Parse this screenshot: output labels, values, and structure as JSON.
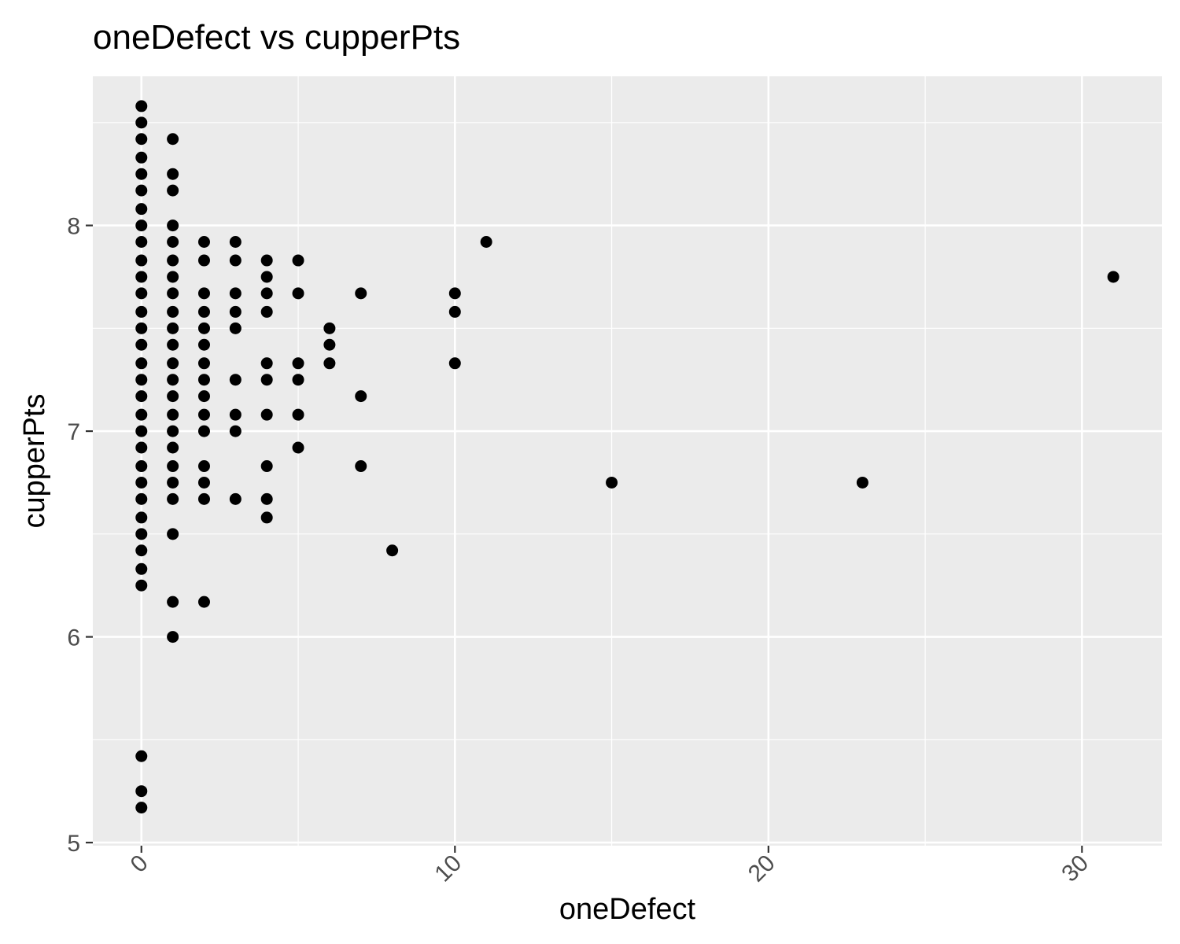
{
  "chart_data": {
    "type": "scatter",
    "title": "oneDefect vs cupperPts",
    "xlabel": "oneDefect",
    "ylabel": "cupperPts",
    "xlim": [
      -1.55,
      32.55
    ],
    "ylim": [
      4.985,
      8.725
    ],
    "x_ticks": [
      0,
      10,
      20,
      30
    ],
    "y_ticks": [
      5,
      6,
      7,
      8
    ],
    "x_tick_labels": [
      "0",
      "10",
      "20",
      "30"
    ],
    "y_tick_labels": [
      "5",
      "6",
      "7",
      "8"
    ],
    "x_tick_label_rotation": -45,
    "x_minor_ticks": [
      5,
      15,
      25
    ],
    "y_minor_ticks": [
      5.5,
      6.5,
      7.5,
      8.5
    ],
    "grid": true,
    "colors": {
      "panel": "#ebebeb",
      "grid": "#ffffff",
      "point": "#000000",
      "tick": "#333333"
    },
    "points": [
      [
        0,
        8.58
      ],
      [
        0,
        8.5
      ],
      [
        0,
        8.42
      ],
      [
        0,
        8.33
      ],
      [
        0,
        8.25
      ],
      [
        0,
        8.17
      ],
      [
        0,
        8.08
      ],
      [
        0,
        8.0
      ],
      [
        0,
        7.92
      ],
      [
        0,
        7.83
      ],
      [
        0,
        7.75
      ],
      [
        0,
        7.67
      ],
      [
        0,
        7.58
      ],
      [
        0,
        7.5
      ],
      [
        0,
        7.42
      ],
      [
        0,
        7.33
      ],
      [
        0,
        7.25
      ],
      [
        0,
        7.17
      ],
      [
        0,
        7.08
      ],
      [
        0,
        7.0
      ],
      [
        0,
        6.92
      ],
      [
        0,
        6.83
      ],
      [
        0,
        6.75
      ],
      [
        0,
        6.67
      ],
      [
        0,
        6.58
      ],
      [
        0,
        6.5
      ],
      [
        0,
        6.42
      ],
      [
        0,
        6.33
      ],
      [
        0,
        6.25
      ],
      [
        0,
        5.42
      ],
      [
        0,
        5.25
      ],
      [
        0,
        5.17
      ],
      [
        1,
        8.42
      ],
      [
        1,
        8.25
      ],
      [
        1,
        8.17
      ],
      [
        1,
        8.0
      ],
      [
        1,
        7.92
      ],
      [
        1,
        7.83
      ],
      [
        1,
        7.75
      ],
      [
        1,
        7.67
      ],
      [
        1,
        7.58
      ],
      [
        1,
        7.5
      ],
      [
        1,
        7.42
      ],
      [
        1,
        7.33
      ],
      [
        1,
        7.25
      ],
      [
        1,
        7.17
      ],
      [
        1,
        7.08
      ],
      [
        1,
        7.0
      ],
      [
        1,
        6.92
      ],
      [
        1,
        6.83
      ],
      [
        1,
        6.75
      ],
      [
        1,
        6.67
      ],
      [
        1,
        6.5
      ],
      [
        1,
        6.17
      ],
      [
        1,
        6.0
      ],
      [
        2,
        7.92
      ],
      [
        2,
        7.83
      ],
      [
        2,
        7.67
      ],
      [
        2,
        7.58
      ],
      [
        2,
        7.5
      ],
      [
        2,
        7.42
      ],
      [
        2,
        7.33
      ],
      [
        2,
        7.25
      ],
      [
        2,
        7.17
      ],
      [
        2,
        7.08
      ],
      [
        2,
        7.0
      ],
      [
        2,
        6.83
      ],
      [
        2,
        6.75
      ],
      [
        2,
        6.67
      ],
      [
        2,
        6.17
      ],
      [
        3,
        7.92
      ],
      [
        3,
        7.83
      ],
      [
        3,
        7.67
      ],
      [
        3,
        7.58
      ],
      [
        3,
        7.5
      ],
      [
        3,
        7.25
      ],
      [
        3,
        7.08
      ],
      [
        3,
        7.0
      ],
      [
        3,
        6.67
      ],
      [
        4,
        7.83
      ],
      [
        4,
        7.75
      ],
      [
        4,
        7.67
      ],
      [
        4,
        7.58
      ],
      [
        4,
        7.33
      ],
      [
        4,
        7.25
      ],
      [
        4,
        7.08
      ],
      [
        4,
        6.83
      ],
      [
        4,
        6.67
      ],
      [
        4,
        6.58
      ],
      [
        5,
        7.83
      ],
      [
        5,
        7.67
      ],
      [
        5,
        7.33
      ],
      [
        5,
        7.25
      ],
      [
        5,
        7.08
      ],
      [
        5,
        6.92
      ],
      [
        6,
        7.5
      ],
      [
        6,
        7.42
      ],
      [
        6,
        7.33
      ],
      [
        7,
        7.67
      ],
      [
        7,
        7.17
      ],
      [
        7,
        6.83
      ],
      [
        8,
        6.42
      ],
      [
        10,
        7.67
      ],
      [
        10,
        7.58
      ],
      [
        10,
        7.33
      ],
      [
        11,
        7.92
      ],
      [
        15,
        6.75
      ],
      [
        23,
        6.75
      ],
      [
        31,
        7.75
      ]
    ]
  }
}
